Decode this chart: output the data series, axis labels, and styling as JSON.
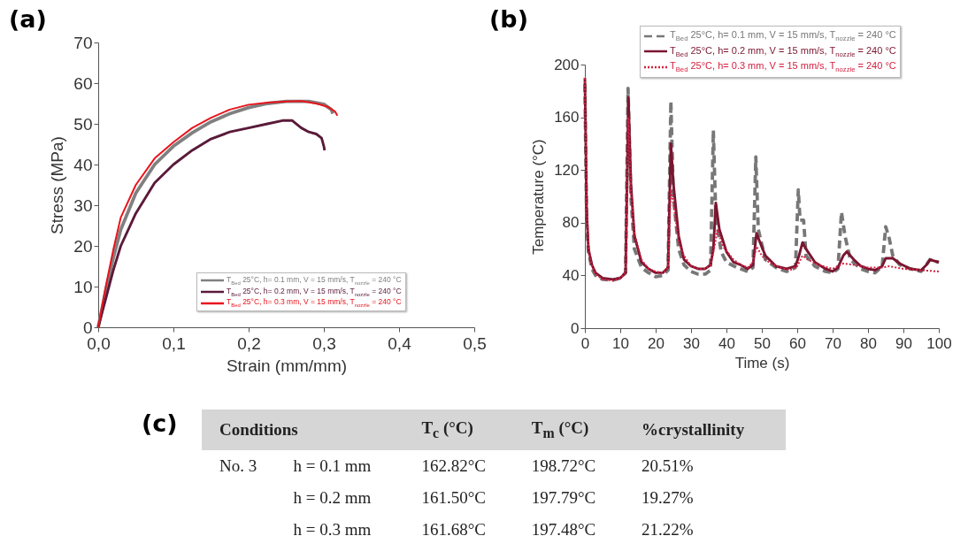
{
  "chart_data": [
    {
      "type": "line",
      "title": "(a)",
      "xlabel": "Strain (mm/mm)",
      "ylabel": "Stress (MPa)",
      "xlim": [
        0,
        0.5
      ],
      "ylim": [
        0,
        70
      ],
      "xticks": [
        {
          "value": 0,
          "label": "0,0"
        },
        {
          "value": 0.1,
          "label": "0,1"
        },
        {
          "value": 0.2,
          "label": "0,2"
        },
        {
          "value": 0.3,
          "label": "0,3"
        },
        {
          "value": 0.4,
          "label": "0,4"
        },
        {
          "value": 0.5,
          "label": "0,5"
        }
      ],
      "yticks": [
        0,
        10,
        20,
        30,
        40,
        50,
        60,
        70
      ],
      "legend": "bottom right",
      "series": [
        {
          "name": "T$_{Bed}$ 25°C, h= 0.1 mm, V = 15 mm/s, T$_{nozzle}$ = 240 °C",
          "color": "#808080",
          "line_style": "solid",
          "x": [
            0,
            0.01,
            0.02,
            0.03,
            0.05,
            0.075,
            0.1,
            0.125,
            0.15,
            0.175,
            0.2,
            0.225,
            0.25,
            0.28,
            0.3,
            0.31,
            0.312
          ],
          "values": [
            0,
            9,
            17,
            24,
            33,
            40,
            44.5,
            47.8,
            50.5,
            52.5,
            54,
            55,
            55.5,
            55.5,
            54.8,
            53.5,
            52.5
          ]
        },
        {
          "name": "T$_{Bed}$ 25°C, h= 0.2 mm, V = 15 mm/s, T$_{nozzle}$ = 240 °C",
          "color": "#5a1a3a",
          "line_style": "solid",
          "x": [
            0,
            0.01,
            0.02,
            0.03,
            0.05,
            0.075,
            0.1,
            0.125,
            0.15,
            0.175,
            0.2,
            0.225,
            0.245,
            0.258,
            0.27,
            0.28,
            0.29,
            0.297,
            0.3,
            0.301
          ],
          "values": [
            0,
            7,
            14,
            20,
            28,
            35.5,
            40,
            43.5,
            46.3,
            48,
            49,
            50,
            50.8,
            50.8,
            49,
            48,
            47.5,
            46.5,
            44.5,
            43.5
          ]
        },
        {
          "name": "T$_{Bed}$ 25°C, h= 0.3 mm, V = 15 mm/s, T$_{nozzle}$ = 240 °C",
          "color": "#e8141c",
          "line_style": "solid",
          "x": [
            0,
            0.01,
            0.02,
            0.03,
            0.05,
            0.075,
            0.1,
            0.125,
            0.15,
            0.175,
            0.2,
            0.225,
            0.25,
            0.27,
            0.29,
            0.305,
            0.315,
            0.318
          ],
          "values": [
            0,
            10,
            19,
            27,
            35,
            41.5,
            45.5,
            49,
            51.5,
            53.5,
            54.7,
            55.2,
            55.5,
            55.6,
            55,
            54.2,
            53,
            52
          ]
        }
      ]
    },
    {
      "type": "line",
      "title": "(b)",
      "xlabel": "Time (s)",
      "ylabel": "Temperature (°C)",
      "xlim": [
        0,
        100
      ],
      "ylim": [
        0,
        200
      ],
      "xticks": [
        0,
        10,
        20,
        30,
        40,
        50,
        60,
        70,
        80,
        90,
        100
      ],
      "yticks": [
        0,
        40,
        80,
        120,
        160,
        200
      ],
      "legend": "top right",
      "series": [
        {
          "name": "T$_{Bed}$ 25°C, h= 0.1 mm, V = 15 mm/s, T$_{nozzle}$ = 240 °C",
          "color": "#777777",
          "line_style": "dashed",
          "x": [
            0,
            0.5,
            1,
            2,
            3,
            5,
            8,
            10,
            11.5,
            12.2,
            13,
            14,
            16,
            18,
            20,
            22,
            23.5,
            24.3,
            25,
            26.5,
            28,
            30,
            32,
            34,
            35.5,
            36.3,
            37,
            38.5,
            40,
            43,
            46,
            47.5,
            48.3,
            49,
            51,
            54,
            57,
            59.5,
            60.3,
            60.8,
            61.8,
            62.5,
            65,
            68,
            70,
            71.5,
            72.5,
            73.5,
            75,
            78,
            80,
            82,
            84,
            85,
            86,
            87,
            89,
            92,
            95,
            96.5,
            97.5,
            100
          ],
          "values": [
            185,
            80,
            58,
            45,
            40,
            37,
            36.5,
            38,
            42,
            182,
            100,
            60,
            46,
            42,
            39,
            40,
            44,
            172,
            100,
            60,
            48,
            43,
            41,
            41,
            44,
            150,
            85,
            58,
            50,
            46,
            43,
            46,
            130,
            75,
            52,
            46,
            43,
            46,
            105,
            82,
            82,
            55,
            47,
            43,
            42,
            45,
            88,
            70,
            52,
            45,
            43,
            42,
            47,
            77,
            68,
            55,
            48,
            45,
            43,
            48,
            52,
            50
          ]
        },
        {
          "name": "T$_{Bed}$ 25°C, h= 0.2 mm, V = 15 mm/s, T$_{nozzle}$ = 240 °C",
          "color": "#7a1530",
          "line_style": "solid",
          "x": [
            0,
            0.5,
            1,
            2,
            3,
            5,
            8,
            10,
            11.5,
            12.3,
            13,
            14,
            16,
            18,
            20,
            22,
            23.5,
            24.3,
            25,
            26.5,
            28,
            30,
            32,
            34,
            35.5,
            36.3,
            37,
            38,
            40,
            42,
            44,
            46,
            47.5,
            48.5,
            49.5,
            51,
            54,
            57,
            59.5,
            60.5,
            61.5,
            62.5,
            65,
            68,
            70,
            71.5,
            73,
            74,
            76,
            78,
            80,
            82,
            84,
            85,
            87,
            89,
            92,
            95,
            96.5,
            97.5,
            100
          ],
          "values": [
            190,
            90,
            60,
            48,
            42,
            38,
            37,
            38,
            42,
            175,
            110,
            70,
            50,
            45,
            42,
            42,
            46,
            140,
            110,
            70,
            52,
            47,
            45,
            45,
            48,
            60,
            95,
            75,
            58,
            50,
            48,
            45,
            48,
            72,
            65,
            55,
            47,
            45,
            47,
            55,
            65,
            60,
            50,
            45,
            43,
            46,
            55,
            58,
            52,
            47,
            45,
            44,
            47,
            53,
            53,
            49,
            45,
            44,
            48,
            52,
            50
          ]
        },
        {
          "name": "T$_{Bed}$ 25°C, h= 0.3 mm, V = 15 mm/s, T$_{nozzle}$ = 240 °C",
          "color": "#d42040",
          "line_style": "dotted",
          "x": [
            0,
            0.5,
            1,
            2,
            3,
            5,
            8,
            10,
            11.5,
            12.3,
            13,
            14,
            16,
            18,
            20,
            22,
            23.5,
            24.3,
            25,
            26.5,
            28,
            30,
            32,
            34,
            35.5,
            36.5,
            37.5,
            39,
            42,
            44,
            46,
            47.5,
            48.5,
            50,
            52,
            55,
            58,
            60,
            61.5,
            63,
            66,
            70,
            73,
            76,
            80,
            84,
            86,
            90,
            95,
            100
          ],
          "values": [
            190,
            95,
            62,
            47,
            41,
            37,
            36,
            38,
            42,
            160,
            105,
            72,
            52,
            45,
            43,
            42,
            46,
            105,
            95,
            65,
            55,
            47,
            45,
            45,
            48,
            60,
            75,
            62,
            52,
            48,
            46,
            50,
            62,
            55,
            50,
            46,
            44,
            47,
            55,
            52,
            48,
            45,
            49,
            48,
            46,
            46,
            47,
            45,
            44,
            43
          ]
        }
      ]
    },
    {
      "type": "other",
      "title": "(c)",
      "categories": [
        "Conditions",
        "T$_{c}$ (°C)",
        "T$_{m}$ (°C)",
        "%crystallinity"
      ],
      "cell_labels": [
        [
          "No. 3",
          "h = 0.1 mm",
          "162.82°C",
          "198.72°C",
          "20.51%"
        ],
        [
          null,
          "h = 0.2 mm",
          "161.50°C",
          "197.79°C",
          "19.27%"
        ],
        [
          null,
          "h = 0.3 mm",
          "161.68°C",
          "197.48°C",
          "21.22%"
        ]
      ]
    }
  ]
}
